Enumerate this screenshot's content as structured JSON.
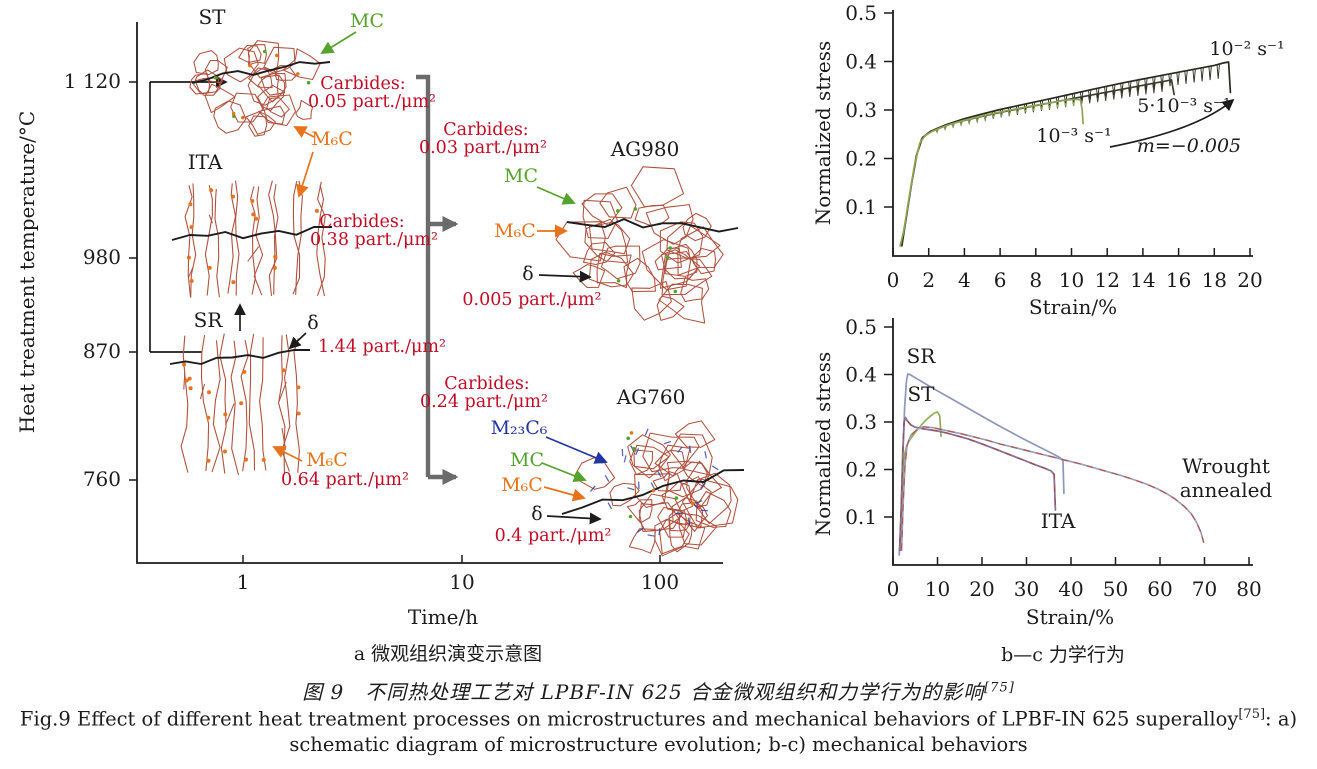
{
  "colors": {
    "ink": "#1c1c1c",
    "red": "#c00d26",
    "green": "#55a32c",
    "orange": "#e7731d",
    "blue": "#2236a0",
    "grain": "#b0523f",
    "bracket": "#6b6b6b",
    "paper": "#ffffff"
  },
  "panel_a": {
    "ylabel": "Heat treatment temperature/°C",
    "xlabel": "Time/h",
    "ytick_labels": [
      "1 120",
      "980",
      "870",
      "760"
    ],
    "xtick_labels": [
      "1",
      "10",
      "100"
    ],
    "state_st": "ST",
    "state_ita": "ITA",
    "state_sr": "SR",
    "state_ag980": "AG980",
    "state_ag760": "AG760",
    "mc": "MC",
    "m6c": "M₆C",
    "m23c6": "M₂₃C₆",
    "delta": "δ",
    "carbides": "Carbides:",
    "st_carbide_density": "0.05 part./μm²",
    "ita_carbide_density": "0.38 part./μm²",
    "sr_delta_density": "1.44 part./μm²",
    "sr_m6c_density": "0.64 part./μm²",
    "ag980_carbide_density": "0.03 part./μm²",
    "ag980_delta_density": "0.005 part./μm²",
    "ag760_carbide_density": "0.24 part./μm²",
    "ag760_delta_density": "0.4 part./μm²",
    "subcaption": "a 微观组织演变示意图"
  },
  "panel_b": {
    "ylabel": "Normalized stress",
    "xlabel": "Strain/%",
    "rate_high": "10⁻² s⁻¹",
    "rate_mid": "5·10⁻³ s⁻¹",
    "rate_low": "10⁻³ s⁻¹",
    "m_value": "m=−0.005"
  },
  "panel_c": {
    "ylabel": "Normalized stress",
    "xlabel": "Strain/%",
    "label_sr": "SR",
    "label_st": "ST",
    "label_ita": "ITA",
    "label_wrought_1": "Wrought",
    "label_wrought_2": "annealed",
    "subcaption": "b—c 力学行为"
  },
  "caption": {
    "zh": "图 9　不同热处理工艺对 LPBF-IN 625 合金微观组织和力学行为的影响",
    "zh_ref": "[75]",
    "en_1": "Fig.9 Effect of different heat treatment processes on microstructures and mechanical behaviors of LPBF-IN 625 superalloy",
    "en_ref": "[75]",
    "en_tail": ": a)",
    "en_2": "schematic diagram of microstructure evolution; b-c) mechanical behaviors"
  },
  "chart_data": [
    {
      "id": "b",
      "type": "line",
      "title": "",
      "xlabel": "Strain/%",
      "ylabel": "Normalized stress",
      "xlim": [
        0,
        20
      ],
      "ylim": [
        0,
        0.5
      ],
      "grid": false,
      "legend_position": "annotations-on-plot",
      "xticks": [
        0,
        2,
        4,
        6,
        8,
        10,
        12,
        14,
        16,
        18,
        20
      ],
      "yticks": [
        0.1,
        0.2,
        0.3,
        0.4,
        0.5
      ],
      "annotations": [
        "10⁻² s⁻¹",
        "5·10⁻³ s⁻¹",
        "10⁻³ s⁻¹",
        "m=−0.005"
      ],
      "series": [
        {
          "name": "10⁻² s⁻¹",
          "color": "#2a2a1e",
          "serr": 13,
          "points": [
            [
              0.5,
              0.02
            ],
            [
              0.75,
              0.08
            ],
            [
              1.05,
              0.15
            ],
            [
              1.35,
              0.21
            ],
            [
              1.65,
              0.243
            ],
            [
              2.1,
              0.256
            ],
            [
              3,
              0.27
            ],
            [
              4,
              0.282
            ],
            [
              5,
              0.292
            ],
            [
              6,
              0.301
            ],
            [
              7,
              0.309
            ],
            [
              8,
              0.317
            ],
            [
              9,
              0.325
            ],
            [
              10,
              0.333
            ],
            [
              11,
              0.341
            ],
            [
              12,
              0.349
            ],
            [
              13,
              0.357
            ],
            [
              14,
              0.364
            ],
            [
              15,
              0.371
            ],
            [
              16,
              0.378
            ],
            [
              17,
              0.385
            ],
            [
              18,
              0.392
            ],
            [
              18.5,
              0.397
            ],
            [
              18.8,
              0.399
            ],
            [
              18.9,
              0.336
            ]
          ]
        },
        {
          "name": "5·10⁻³ s⁻¹",
          "color": "#3d3d2b",
          "serr": 9,
          "points": [
            [
              0.45,
              0.02
            ],
            [
              0.7,
              0.07
            ],
            [
              1.0,
              0.14
            ],
            [
              1.3,
              0.205
            ],
            [
              1.6,
              0.24
            ],
            [
              2.0,
              0.253
            ],
            [
              2.5,
              0.262
            ],
            [
              3.5,
              0.274
            ],
            [
              5,
              0.287
            ],
            [
              6,
              0.295
            ],
            [
              7,
              0.302
            ],
            [
              8,
              0.309
            ],
            [
              9,
              0.316
            ],
            [
              10,
              0.323
            ],
            [
              11,
              0.33
            ],
            [
              12,
              0.337
            ],
            [
              13,
              0.344
            ],
            [
              14,
              0.351
            ],
            [
              15,
              0.358
            ],
            [
              15.6,
              0.362
            ],
            [
              15.75,
              0.332
            ]
          ]
        },
        {
          "name": "10⁻³ s⁻¹",
          "color": "#8ea556",
          "serr": 5,
          "points": [
            [
              0.4,
              0.02
            ],
            [
              0.6,
              0.05
            ],
            [
              0.9,
              0.12
            ],
            [
              1.2,
              0.185
            ],
            [
              1.5,
              0.232
            ],
            [
              1.8,
              0.247
            ],
            [
              2.2,
              0.256
            ],
            [
              3,
              0.268
            ],
            [
              4,
              0.279
            ],
            [
              5,
              0.288
            ],
            [
              6,
              0.296
            ],
            [
              7,
              0.303
            ],
            [
              8,
              0.31
            ],
            [
              9,
              0.316
            ],
            [
              9.6,
              0.32
            ],
            [
              10.2,
              0.322
            ],
            [
              10.5,
              0.321
            ],
            [
              10.6,
              0.3
            ],
            [
              10.65,
              0.272
            ]
          ]
        }
      ]
    },
    {
      "id": "c",
      "type": "line",
      "title": "",
      "xlabel": "Strain/%",
      "ylabel": "Normalized stress",
      "xlim": [
        0,
        80
      ],
      "ylim": [
        0,
        0.5
      ],
      "grid": false,
      "legend_position": "annotations-on-plot",
      "xticks": [
        0,
        10,
        20,
        30,
        40,
        50,
        60,
        70,
        80
      ],
      "yticks": [
        0.1,
        0.2,
        0.3,
        0.4,
        0.5
      ],
      "annotations": [
        "SR",
        "ST",
        "ITA",
        "Wrought annealed"
      ],
      "series": [
        {
          "name": "SR",
          "color": "#8e97ba",
          "points": [
            [
              1.4,
              0.02
            ],
            [
              1.8,
              0.1
            ],
            [
              2.2,
              0.22
            ],
            [
              2.6,
              0.33
            ],
            [
              3.0,
              0.385
            ],
            [
              3.3,
              0.401
            ],
            [
              3.8,
              0.4
            ],
            [
              5,
              0.393
            ],
            [
              7,
              0.382
            ],
            [
              9,
              0.371
            ],
            [
              12,
              0.355
            ],
            [
              15,
              0.339
            ],
            [
              18,
              0.323
            ],
            [
              21,
              0.307
            ],
            [
              24,
              0.291
            ],
            [
              27,
              0.276
            ],
            [
              30,
              0.261
            ],
            [
              33,
              0.247
            ],
            [
              35.5,
              0.235
            ],
            [
              37.5,
              0.225
            ],
            [
              38.2,
              0.218
            ],
            [
              38.4,
              0.15
            ]
          ]
        },
        {
          "name": "ST",
          "color": "#8fae57",
          "points": [
            [
              1.7,
              0.03
            ],
            [
              2.0,
              0.12
            ],
            [
              2.3,
              0.195
            ],
            [
              2.6,
              0.232
            ],
            [
              3.0,
              0.248
            ],
            [
              3.6,
              0.26
            ],
            [
              4.5,
              0.272
            ],
            [
              5.5,
              0.284
            ],
            [
              6.5,
              0.295
            ],
            [
              7.5,
              0.305
            ],
            [
              8.5,
              0.313
            ],
            [
              9.3,
              0.319
            ],
            [
              10,
              0.321
            ],
            [
              10.5,
              0.313
            ],
            [
              10.8,
              0.27
            ]
          ]
        },
        {
          "name": "ITA",
          "color": "#91505e",
          "overlay": "#8078ad",
          "points": [
            [
              1.5,
              0.03
            ],
            [
              1.9,
              0.14
            ],
            [
              2.2,
              0.24
            ],
            [
              2.5,
              0.3
            ],
            [
              2.8,
              0.309
            ],
            [
              3.2,
              0.303
            ],
            [
              4,
              0.294
            ],
            [
              5,
              0.289
            ],
            [
              6.5,
              0.286
            ],
            [
              8,
              0.284
            ],
            [
              10,
              0.281
            ],
            [
              12,
              0.277
            ],
            [
              14,
              0.272
            ],
            [
              17,
              0.264
            ],
            [
              20,
              0.254
            ],
            [
              23,
              0.243
            ],
            [
              26,
              0.232
            ],
            [
              29,
              0.221
            ],
            [
              32,
              0.21
            ],
            [
              34,
              0.203
            ],
            [
              35.5,
              0.197
            ],
            [
              36.2,
              0.19
            ],
            [
              36.5,
              0.115
            ]
          ]
        },
        {
          "name": "Wrought annealed",
          "color": "#99a1bf",
          "overlay": "#b5564e",
          "points": [
            [
              1.9,
              0.03
            ],
            [
              2.3,
              0.13
            ],
            [
              2.7,
              0.21
            ],
            [
              3.2,
              0.252
            ],
            [
              4,
              0.272
            ],
            [
              5.5,
              0.285
            ],
            [
              7,
              0.29
            ],
            [
              9,
              0.288
            ],
            [
              12,
              0.282
            ],
            [
              15,
              0.276
            ],
            [
              18,
              0.269
            ],
            [
              21,
              0.262
            ],
            [
              24,
              0.254
            ],
            [
              27,
              0.247
            ],
            [
              30,
              0.24
            ],
            [
              33,
              0.233
            ],
            [
              36,
              0.226
            ],
            [
              39,
              0.219
            ],
            [
              42,
              0.212
            ],
            [
              45,
              0.204
            ],
            [
              48,
              0.196
            ],
            [
              51,
              0.188
            ],
            [
              54,
              0.179
            ],
            [
              57,
              0.169
            ],
            [
              59.5,
              0.159
            ],
            [
              61.5,
              0.149
            ],
            [
              63.5,
              0.137
            ],
            [
              65.5,
              0.122
            ],
            [
              67,
              0.107
            ],
            [
              68.2,
              0.089
            ],
            [
              69.2,
              0.068
            ],
            [
              69.8,
              0.047
            ]
          ]
        }
      ]
    }
  ]
}
